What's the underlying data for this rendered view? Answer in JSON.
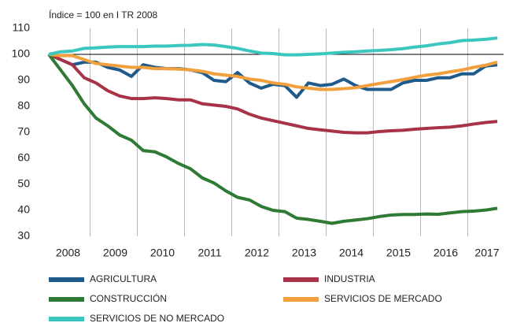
{
  "chart_data": {
    "type": "line",
    "subtitle": "Índice = 100 en I TR 2008",
    "categories": [
      "2008",
      null,
      null,
      null,
      "2009",
      null,
      null,
      null,
      "2010",
      null,
      null,
      null,
      "2011",
      null,
      null,
      null,
      "2012",
      null,
      null,
      null,
      "2013",
      null,
      null,
      null,
      "2014",
      null,
      null,
      null,
      "2015",
      null,
      null,
      null,
      "2016",
      null,
      null,
      null,
      "2017",
      null,
      null
    ],
    "ylim": [
      30,
      110
    ],
    "yticks": [
      30,
      40,
      50,
      60,
      70,
      80,
      90,
      100,
      110
    ],
    "reference_line": 100,
    "series": [
      {
        "name": "AGRICULTURA",
        "color": "#1f5a8c",
        "values": [
          100,
          98,
          96,
          97,
          97,
          95,
          94,
          91.5,
          96,
          95,
          94.5,
          94.5,
          94,
          93,
          90,
          89.5,
          93,
          89,
          87,
          88.5,
          88,
          83.5,
          89,
          88,
          88.5,
          90.5,
          88,
          86.5,
          86.5,
          86.5,
          89,
          90,
          90,
          91,
          91,
          92.5,
          92.5,
          95.5,
          96
        ]
      },
      {
        "name": "INDUSTRIA",
        "color": "#a83248",
        "values": [
          100,
          98,
          96,
          91,
          89,
          86,
          84,
          83,
          83,
          83.3,
          83,
          82.5,
          82.5,
          81,
          80.5,
          80,
          79,
          77,
          75.5,
          74.5,
          73.5,
          72.5,
          71.5,
          71,
          70.5,
          70,
          69.8,
          69.8,
          70.3,
          70.6,
          70.8,
          71.2,
          71.5,
          71.8,
          72,
          72.5,
          73.2,
          73.8,
          74.2
        ]
      },
      {
        "name": "CONSTRUCCIÓN",
        "color": "#2f7a34",
        "values": [
          100,
          94,
          88,
          81,
          75.5,
          72.5,
          69,
          67,
          63,
          62.5,
          60.5,
          58,
          56,
          52.5,
          50.5,
          47.5,
          45,
          44,
          41.5,
          40,
          39.5,
          37,
          36.5,
          35.8,
          35,
          35.8,
          36.3,
          36.8,
          37.6,
          38.2,
          38.4,
          38.4,
          38.6,
          38.5,
          39,
          39.5,
          39.7,
          40.1,
          40.8
        ]
      },
      {
        "name": "SERVICIOS DE MERCADO",
        "color": "#f2a03d",
        "values": [
          100,
          99.5,
          99.5,
          98,
          96.5,
          96,
          95.5,
          95,
          95,
          94.5,
          94.5,
          94.3,
          94,
          93.5,
          92.5,
          92,
          91.5,
          90.5,
          90,
          89,
          88.5,
          87.5,
          87,
          86.5,
          86.5,
          86.8,
          87.2,
          88,
          88.8,
          89.5,
          90.3,
          91.2,
          92,
          92.5,
          93.3,
          94,
          95,
          95.8,
          97
        ]
      },
      {
        "name": "SERVICIOS DE NO MERCADO",
        "color": "#3cc6c0",
        "values": [
          100,
          101,
          101.3,
          102.3,
          102.5,
          102.8,
          103,
          103,
          103,
          103.2,
          103.2,
          103.4,
          103.5,
          103.8,
          103.6,
          103,
          102.3,
          101.3,
          100.5,
          100.3,
          99.8,
          99.8,
          100,
          100.2,
          100.5,
          100.8,
          101,
          101.3,
          101.5,
          101.8,
          102.2,
          102.8,
          103.3,
          104,
          104.5,
          105.3,
          105.5,
          105.8,
          106.3
        ]
      }
    ]
  }
}
